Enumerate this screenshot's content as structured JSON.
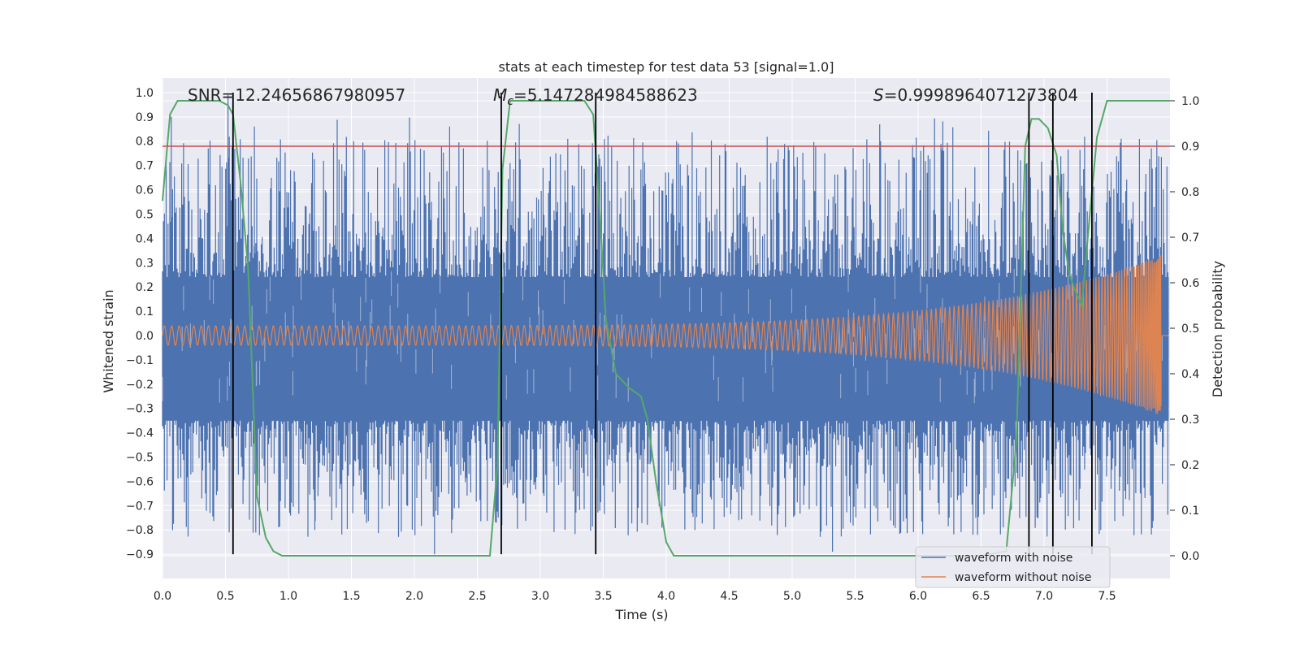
{
  "chart_data": {
    "type": "line",
    "title": "stats at each timestep for test data 53 [signal=1.0]",
    "xlabel": "Time (s)",
    "ylabel": "Whitened strain",
    "y2label": "Detection probability",
    "xlim": [
      0.0,
      8.0
    ],
    "ylim": [
      -1.0,
      1.06
    ],
    "y2lim": [
      -0.05,
      1.05
    ],
    "x_ticks": [
      "0.0",
      "0.5",
      "1.0",
      "1.5",
      "2.0",
      "2.5",
      "3.0",
      "3.5",
      "4.0",
      "4.5",
      "5.0",
      "5.5",
      "6.0",
      "6.5",
      "7.0",
      "7.5"
    ],
    "y_ticks": [
      "1.0",
      "0.9",
      "0.8",
      "0.7",
      "0.6",
      "0.5",
      "0.4",
      "0.3",
      "0.2",
      "0.1",
      "0.0",
      "−0.1",
      "−0.2",
      "−0.3",
      "−0.4",
      "−0.5",
      "−0.6",
      "−0.7",
      "−0.8",
      "−0.9"
    ],
    "y2_ticks": [
      "1.0",
      "0.9",
      "0.8",
      "0.7",
      "0.6",
      "0.5",
      "0.4",
      "0.3",
      "0.2",
      "0.1",
      "0.0"
    ],
    "grid": true,
    "background": "#EAEAF2",
    "annotations": {
      "snr": "SNR=12.24656867980957",
      "mc_symbol": "M",
      "mc_sub": "c",
      "mc_value": "=5.147284984588623",
      "s_symbol": "S",
      "s_value": "=0.9998964071273804"
    },
    "legend": {
      "placement": "lower-right",
      "entries": [
        "waveform with noise",
        "waveform without noise"
      ]
    },
    "colors": {
      "noise": "#4C72B0",
      "clean": "#DD8452",
      "probability": "#55A868",
      "threshold": "#C44E52",
      "event_lines": "#000000"
    },
    "series": [
      {
        "name": "waveform with noise",
        "kind": "noisy_strain",
        "extent": [
          -0.85,
          0.85
        ],
        "peak_spikes_to": [
          -0.9,
          1.0
        ]
      },
      {
        "name": "waveform without noise",
        "kind": "chirp",
        "amplitude_start": 0.04,
        "amplitude_end": 0.33,
        "merger_time": 7.93
      },
      {
        "kind": "probability",
        "axis": "right",
        "x": [
          0.0,
          0.06,
          0.12,
          0.2,
          0.3,
          0.45,
          0.52,
          0.56,
          0.62,
          0.68,
          0.75,
          0.82,
          0.88,
          0.95,
          1.5,
          2.0,
          2.5,
          2.6,
          2.66,
          2.7,
          2.76,
          2.85,
          3.0,
          3.35,
          3.42,
          3.48,
          3.52,
          3.6,
          3.7,
          3.8,
          3.85,
          3.92,
          4.0,
          4.06,
          4.2,
          5.0,
          6.0,
          6.5,
          6.7,
          6.78,
          6.85,
          6.9,
          6.96,
          7.03,
          7.1,
          7.15,
          7.2,
          7.25,
          7.3,
          7.35,
          7.42,
          7.5,
          7.7,
          8.0
        ],
        "y": [
          0.78,
          0.97,
          1.0,
          1.0,
          1.0,
          1.0,
          0.99,
          0.97,
          0.82,
          0.63,
          0.13,
          0.04,
          0.01,
          0.0,
          0.0,
          0.0,
          0.0,
          0.0,
          0.2,
          0.85,
          1.0,
          1.0,
          1.0,
          1.0,
          0.97,
          0.72,
          0.52,
          0.4,
          0.37,
          0.35,
          0.3,
          0.16,
          0.03,
          0.0,
          0.0,
          0.0,
          0.0,
          0.0,
          0.01,
          0.25,
          0.9,
          0.96,
          0.96,
          0.94,
          0.88,
          0.71,
          0.62,
          0.58,
          0.55,
          0.71,
          0.92,
          1.0,
          1.0,
          1.0
        ]
      },
      {
        "kind": "threshold",
        "axis": "right",
        "value": 0.9
      },
      {
        "kind": "event_lines",
        "x": [
          0.56,
          2.69,
          3.44,
          6.88,
          7.07,
          7.38
        ],
        "y_range": [
          -0.9,
          1.0
        ]
      }
    ]
  }
}
